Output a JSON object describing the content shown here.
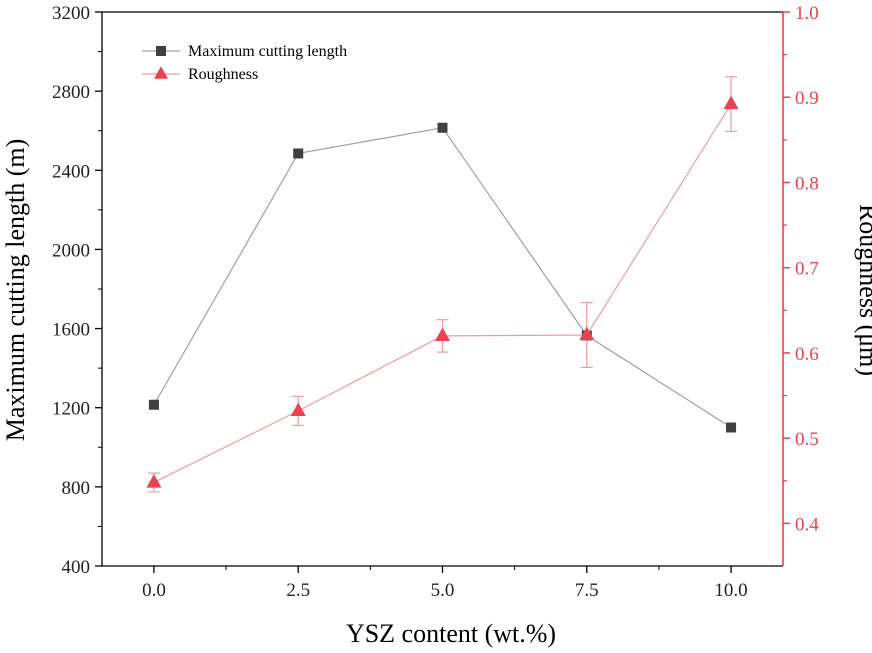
{
  "chart_data": {
    "type": "line",
    "title": "",
    "xlabel": "YSZ content (wt.%)",
    "ylabel_left": "Maximum cutting length (m)",
    "ylabel_right": "Roughness (μm)",
    "x": [
      0.0,
      2.5,
      5.0,
      7.5,
      10.0
    ],
    "x_tick_labels": [
      "0.0",
      "2.5",
      "5.0",
      "7.5",
      "10.0"
    ],
    "xlim": [
      -0.9,
      10.9
    ],
    "ylim_left": [
      400,
      3200
    ],
    "ylim_right": [
      0.35,
      1.0
    ],
    "y_left_ticks": [
      "400",
      "800",
      "1200",
      "1600",
      "2000",
      "2400",
      "2800",
      "3200"
    ],
    "y_right_ticks": [
      "0.4",
      "0.5",
      "0.6",
      "0.7",
      "0.8",
      "0.9",
      "1.0"
    ],
    "grid": false,
    "legend_position": "top-left",
    "series": [
      {
        "name": "Maximum cutting length",
        "axis": "left",
        "marker": "square",
        "color": "#404040",
        "line_color": "#a0a0a0",
        "values": [
          1215,
          2485,
          2615,
          1565,
          1100
        ]
      },
      {
        "name": "Roughness",
        "axis": "right",
        "marker": "triangle",
        "color": "#e8434e",
        "line_color": "#f09aa0",
        "values": [
          0.448,
          0.532,
          0.62,
          0.621,
          0.892
        ],
        "error": [
          0.011,
          0.017,
          0.019,
          0.038,
          0.032
        ]
      }
    ]
  }
}
